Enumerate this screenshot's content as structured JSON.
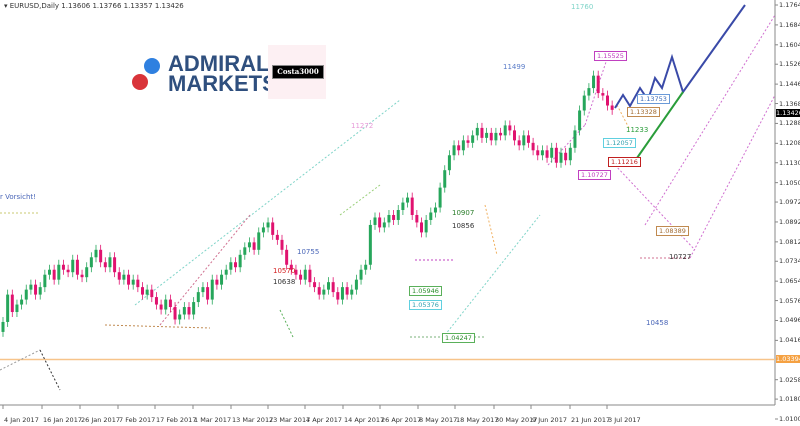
{
  "header": {
    "symbol": "EURUSD,Daily",
    "ohlc": "1.13606 1.13766 1.13357 1.13426"
  },
  "logo": {
    "text_line1": "ADMIRAL",
    "text_line2": "MARKETS",
    "badge": "Costa3000"
  },
  "chart_data": {
    "type": "candlestick",
    "title": "",
    "ylim": [
      1.01,
      1.1764
    ],
    "y_ticks": [
      "1.17640",
      "1.16840",
      "1.16040",
      "1.15260",
      "1.14460",
      "1.13680",
      "1.12880",
      "1.12080",
      "1.11300",
      "1.10500",
      "1.09720",
      "1.08920",
      "1.08120",
      "1.07340",
      "1.06540",
      "1.05760",
      "1.04960",
      "1.04160",
      "1.02580",
      "1.01800",
      "1.01000"
    ],
    "x_ticks": [
      "4 Jan 2017",
      "16 Jan 2017",
      "26 Jan 2017",
      "7 Feb 2017",
      "17 Feb 2017",
      "1 Mar 2017",
      "13 Mar 2017",
      "23 Mar 2017",
      "4 Apr 2017",
      "14 Apr 2017",
      "26 Apr 2017",
      "8 May 2017",
      "18 May 2017",
      "30 May 2017",
      "9 Jun 2017",
      "21 Jun 2017",
      "3 Jul 2017"
    ],
    "current_price": "1.13426",
    "horizontal_level": "1.03394",
    "closes": [
      1.049,
      1.06,
      1.053,
      1.056,
      1.058,
      1.062,
      1.064,
      1.06,
      1.063,
      1.068,
      1.07,
      1.066,
      1.072,
      1.07,
      1.069,
      1.074,
      1.068,
      1.067,
      1.071,
      1.075,
      1.078,
      1.073,
      1.071,
      1.075,
      1.069,
      1.066,
      1.068,
      1.064,
      1.066,
      1.063,
      1.06,
      1.062,
      1.059,
      1.056,
      1.054,
      1.058,
      1.055,
      1.05,
      1.052,
      1.055,
      1.052,
      1.057,
      1.061,
      1.063,
      1.058,
      1.066,
      1.064,
      1.068,
      1.07,
      1.073,
      1.071,
      1.076,
      1.079,
      1.081,
      1.078,
      1.085,
      1.087,
      1.089,
      1.084,
      1.082,
      1.078,
      1.072,
      1.07,
      1.068,
      1.066,
      1.07,
      1.065,
      1.063,
      1.06,
      1.062,
      1.065,
      1.061,
      1.058,
      1.063,
      1.06,
      1.062,
      1.066,
      1.07,
      1.072,
      1.088,
      1.091,
      1.087,
      1.089,
      1.092,
      1.09,
      1.094,
      1.097,
      1.099,
      1.092,
      1.089,
      1.085,
      1.09,
      1.093,
      1.095,
      1.103,
      1.11,
      1.116,
      1.12,
      1.118,
      1.122,
      1.121,
      1.124,
      1.127,
      1.123,
      1.125,
      1.122,
      1.125,
      1.124,
      1.128,
      1.126,
      1.122,
      1.12,
      1.124,
      1.121,
      1.118,
      1.116,
      1.118,
      1.115,
      1.119,
      1.113,
      1.117,
      1.114,
      1.119,
      1.126,
      1.134,
      1.14,
      1.143,
      1.148,
      1.141,
      1.14,
      1.136,
      1.13426
    ],
    "up_color": "#26a65b",
    "down_color": "#e0126f",
    "annotations": {
      "a1": "11760",
      "a2": "11499",
      "a3": "11272",
      "a4": "10755",
      "a5": "10570",
      "a6": "10638",
      "a7": "10907",
      "a8": "10856",
      "a9": "11233",
      "a10": "10727",
      "a11": "10458",
      "a12": "r Vorsicht!"
    },
    "price_boxes": {
      "b1": "1.15525",
      "b2": "1.13753",
      "b3": "1.13328",
      "b4": "1.12057",
      "b5": "1.11216",
      "b6": "1.10727",
      "b7": "1.08389",
      "b8": "1.05946",
      "b9": "1.05376",
      "b10": "1.04247"
    },
    "projection_color": "#3a4aa8",
    "support_color": "#2a9d3a"
  }
}
